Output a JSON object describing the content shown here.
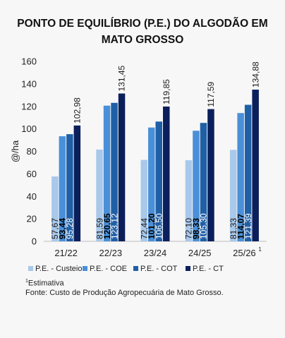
{
  "title_line1": "PONTO DE EQUILÍBRIO (P.E.) DO ALGODÃO EM",
  "title_line2": "MATO GROSSO",
  "footnote_marker": "1",
  "footnote_text": "Estimativa",
  "source": "Fonte: Custo de Produção Agropecuária de Mato Grosso.",
  "chart_data": {
    "type": "bar",
    "ylabel": "@/ha",
    "ylim": [
      0,
      160
    ],
    "yticks": [
      0,
      20,
      40,
      60,
      80,
      100,
      120,
      140,
      160
    ],
    "categories": [
      "21/22",
      "22/23",
      "23/24",
      "24/25",
      "25/26"
    ],
    "category_superscripts": [
      "",
      "",
      "",
      "",
      "1"
    ],
    "grid": false,
    "legend_position": "bottom",
    "series": [
      {
        "name": "P.E. - Custeio",
        "color": "#a9c8ea",
        "values": [
          57.67,
          81.59,
          72.44,
          72.1,
          81.33
        ],
        "labels": [
          "57,67",
          "81,59",
          "72,44",
          "72,10",
          "81,33"
        ],
        "label_color": "#1a1a1a",
        "label_bold": false
      },
      {
        "name": "P.E. - COE",
        "color": "#4a90d9",
        "values": [
          93.44,
          120.65,
          101.2,
          98.33,
          114.07
        ],
        "labels": [
          "93,44",
          "120,65",
          "101,20",
          "98,33",
          "114,07"
        ],
        "label_color": "#000000",
        "label_bold": true
      },
      {
        "name": "P.E. - COT",
        "color": "#1f5fa6",
        "values": [
          95.28,
          123.12,
          106.5,
          105.3,
          121.39
        ],
        "labels": [
          "95,28",
          "123,12",
          "106,50",
          "105,30",
          "121,39"
        ],
        "label_color": "#ffffff",
        "label_bold": false
      },
      {
        "name": "P.E. - CT",
        "color": "#0b1f5c",
        "values": [
          102.98,
          131.45,
          119.85,
          117.59,
          134.88
        ],
        "labels": [
          "102,98",
          "131,45",
          "119,85",
          "117,59",
          "134,88"
        ],
        "label_color": "#1a1a1a",
        "label_bold": false
      }
    ]
  }
}
